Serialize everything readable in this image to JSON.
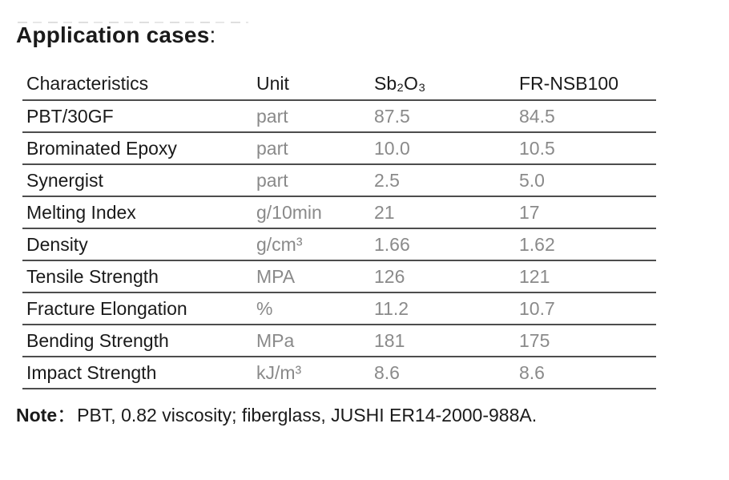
{
  "page": {
    "title": "Application cases",
    "title_colon": ":"
  },
  "table": {
    "headers": [
      "Characteristics",
      "Unit",
      "Sb₂O₃",
      "FR-NSB100"
    ],
    "rows": [
      {
        "name": "PBT/30GF",
        "unit": "part",
        "sb2o3": "87.5",
        "frnsb100": "84.5"
      },
      {
        "name": "Brominated Epoxy",
        "unit": "part",
        "sb2o3": "10.0",
        "frnsb100": "10.5"
      },
      {
        "name": "Synergist",
        "unit": "part",
        "sb2o3": "2.5",
        "frnsb100": "5.0"
      },
      {
        "name": "Melting Index",
        "unit": "g/10min",
        "sb2o3": "21",
        "frnsb100": "17"
      },
      {
        "name": "Density",
        "unit": "g/cm³",
        "sb2o3": "1.66",
        "frnsb100": "1.62"
      },
      {
        "name": "Tensile Strength",
        "unit": "MPA",
        "sb2o3": "126",
        "frnsb100": "121"
      },
      {
        "name": "Fracture Elongation",
        "unit": "%",
        "sb2o3": "11.2",
        "frnsb100": "10.7"
      },
      {
        "name": "Bending Strength",
        "unit": "MPa",
        "sb2o3": "181",
        "frnsb100": "175"
      },
      {
        "name": "Impact Strength",
        "unit": "kJ/m³",
        "sb2o3": "8.6",
        "frnsb100": "8.6"
      }
    ]
  },
  "note": {
    "label": "Note",
    "colon": "：",
    "text": "PBT, 0.82 viscosity; fiberglass, JUSHI ER14-2000-988A."
  },
  "colors": {
    "background": "#ffffff",
    "text_primary": "#1a1a1a",
    "text_secondary": "#8a8a8a",
    "rule_line": "#4d4d4d"
  }
}
